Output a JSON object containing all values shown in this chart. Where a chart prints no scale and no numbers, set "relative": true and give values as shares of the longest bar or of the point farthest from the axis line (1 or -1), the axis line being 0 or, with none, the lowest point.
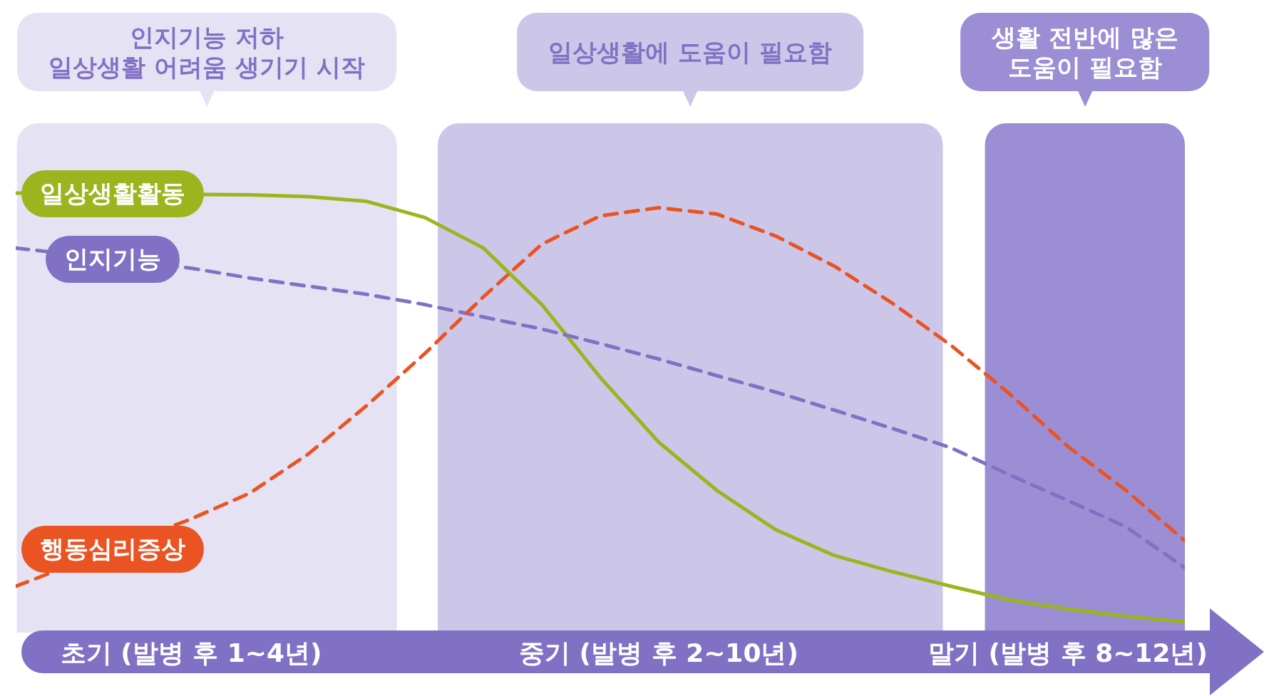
{
  "chart_data": {
    "type": "line",
    "relative": true,
    "legend": false,
    "grid": false,
    "categories": [
      null,
      null,
      null,
      "초기 (발병 후 1~4년)",
      null,
      null,
      null,
      null,
      null,
      null,
      null,
      "중기 (발병 후 2~10년)",
      null,
      null,
      null,
      null,
      null,
      null,
      "말기 (발병 후 8~12년)",
      null,
      null
    ],
    "annotations": [
      "인지기능 저하\n일상생활 어려움 생기기 시작",
      "일상생활에 도움이 필요함",
      "생활 전반에 많은\n도움이 필요함"
    ],
    "series": [
      {
        "name": "일상생활활동",
        "color": "#9bb51f",
        "line_style": "solid",
        "values": [
          1.0,
          null,
          null,
          null,
          0.996,
          0.992,
          0.981,
          0.943,
          0.872,
          0.74,
          0.57,
          0.419,
          0.306,
          0.215,
          0.155,
          0.117,
          0.083,
          0.051,
          0.03,
          0.013,
          0
        ]
      },
      {
        "name": "인지기능",
        "color": "#8071c4",
        "line_style": "dashed",
        "values": [
          0.872,
          null,
          null,
          0.825,
          0.802,
          0.783,
          0.764,
          0.74,
          0.711,
          0.683,
          0.649,
          0.613,
          0.574,
          0.536,
          0.494,
          0.451,
          0.406,
          0.343,
          0.283,
          0.221,
          0.126
        ]
      },
      {
        "name": "행동심리증상",
        "color": "#ea5423",
        "line_style": "dashed",
        "values": [
          0.083,
          null,
          null,
          0.24,
          0.3,
          0.391,
          0.504,
          0.626,
          0.758,
          0.881,
          0.947,
          0.966,
          0.951,
          0.9,
          0.83,
          0.743,
          0.645,
          0.532,
          0.409,
          0.306,
          0.189
        ]
      }
    ]
  }
}
